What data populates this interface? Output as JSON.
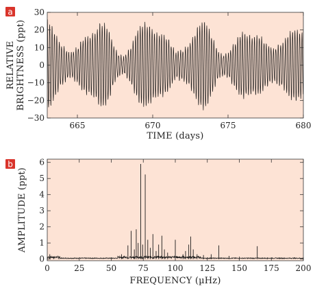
{
  "chart_data": [
    {
      "panel": "a",
      "type": "line",
      "xlabel": "TIME (days)",
      "ylabel_lines": [
        "RELATIVE",
        "BRIGHTNESS (ppt)"
      ],
      "xlim": [
        663,
        680
      ],
      "ylim": [
        -30,
        30
      ],
      "xticks": [
        665,
        670,
        675,
        680
      ],
      "yticks": [
        -30,
        -20,
        -10,
        0,
        10,
        20,
        30
      ],
      "background": "#fde3d5",
      "line_color": "#1a1a1a",
      "envelope": {
        "x": [
          663.0,
          663.5,
          664.0,
          664.5,
          665.0,
          665.5,
          666.0,
          666.5,
          667.0,
          667.5,
          668.0,
          668.5,
          669.0,
          669.5,
          670.0,
          670.5,
          671.0,
          671.5,
          672.0,
          672.5,
          673.0,
          673.5,
          674.0,
          674.5,
          675.0,
          675.5,
          676.0,
          676.5,
          677.0,
          677.5,
          678.0,
          678.5,
          679.0,
          679.5,
          680.0
        ],
        "amplitude": [
          22,
          19,
          13,
          6,
          8,
          15,
          21,
          24,
          18,
          8,
          5,
          10,
          17,
          21,
          23,
          20,
          13,
          6,
          9,
          15,
          20,
          21,
          15,
          7,
          6,
          11,
          18,
          20,
          17,
          10,
          8,
          14,
          19,
          17,
          15
        ]
      },
      "dominant_period_days": 0.158
    },
    {
      "panel": "b",
      "type": "line",
      "xlabel": "FREQUENCY (µHz)",
      "ylabel": "AMPLITUDE (ppt)",
      "xlim": [
        0,
        200
      ],
      "ylim": [
        -0.1,
        6.2
      ],
      "xticks": [
        0,
        25,
        50,
        75,
        100,
        125,
        150,
        175,
        200
      ],
      "yticks": [
        0,
        1,
        2,
        3,
        4,
        5,
        6
      ],
      "background": "#fde3d5",
      "line_color": "#1a1a1a",
      "peaks": [
        {
          "x": 2,
          "y": 0.3
        },
        {
          "x": 5,
          "y": 0.15
        },
        {
          "x": 9,
          "y": 0.12
        },
        {
          "x": 58,
          "y": 0.3
        },
        {
          "x": 63,
          "y": 0.85
        },
        {
          "x": 65.5,
          "y": 1.75
        },
        {
          "x": 68,
          "y": 0.6
        },
        {
          "x": 69.5,
          "y": 1.85
        },
        {
          "x": 71,
          "y": 1.0
        },
        {
          "x": 73,
          "y": 5.9
        },
        {
          "x": 74.5,
          "y": 0.9
        },
        {
          "x": 76.5,
          "y": 5.25
        },
        {
          "x": 78.5,
          "y": 1.2
        },
        {
          "x": 80.5,
          "y": 0.7
        },
        {
          "x": 82.5,
          "y": 1.55
        },
        {
          "x": 85,
          "y": 0.5
        },
        {
          "x": 87,
          "y": 0.9
        },
        {
          "x": 89.5,
          "y": 1.45
        },
        {
          "x": 91.5,
          "y": 0.6
        },
        {
          "x": 94,
          "y": 0.4
        },
        {
          "x": 100,
          "y": 1.2
        },
        {
          "x": 106,
          "y": 0.3
        },
        {
          "x": 108,
          "y": 0.5
        },
        {
          "x": 110.5,
          "y": 0.9
        },
        {
          "x": 112,
          "y": 1.4
        },
        {
          "x": 114,
          "y": 0.6
        },
        {
          "x": 117,
          "y": 0.3
        },
        {
          "x": 122,
          "y": 0.25
        },
        {
          "x": 128,
          "y": 0.3
        },
        {
          "x": 134,
          "y": 0.85
        },
        {
          "x": 142,
          "y": 0.2
        },
        {
          "x": 150,
          "y": 0.15
        },
        {
          "x": 164,
          "y": 0.8
        },
        {
          "x": 172,
          "y": 0.1
        },
        {
          "x": 185,
          "y": 0.08
        }
      ]
    }
  ],
  "panel_label_color": "#d9342b"
}
